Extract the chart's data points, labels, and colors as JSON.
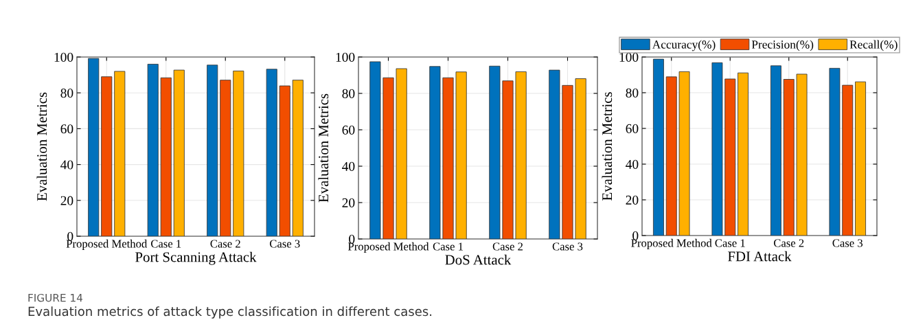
{
  "chart_data": [
    {
      "type": "bar",
      "xlabel": "Port Scanning Attack",
      "ylabel": "Evaluation Metrics",
      "categories": [
        "Proposed Method",
        "Case 1",
        "Case 2",
        "Case 3"
      ],
      "ylim": [
        0,
        100
      ],
      "yticks": [
        0,
        20,
        40,
        60,
        80,
        100
      ],
      "grid": true,
      "legend": false,
      "series": [
        {
          "color": "#0072bd",
          "values": [
            99.2,
            96.0,
            95.5,
            93.2
          ]
        },
        {
          "color": "#f24e00",
          "values": [
            89.0,
            88.4,
            87.1,
            83.9
          ]
        },
        {
          "color": "#ffb000",
          "values": [
            92.0,
            92.7,
            92.2,
            87.1
          ]
        }
      ],
      "annotations": [
        "FIGURE 14",
        "Evaluation metrics of attack type classification in different cases."
      ]
    },
    {
      "type": "bar",
      "xlabel": "DoS Attack",
      "ylabel": "Evaluation Metrics",
      "categories": [
        "Proposed Method",
        "Case 1",
        "Case 2",
        "Case 3"
      ],
      "ylim": [
        0,
        100
      ],
      "yticks": [
        0,
        20,
        40,
        60,
        80,
        100
      ],
      "grid": true,
      "legend": false,
      "series": [
        {
          "color": "#0072bd",
          "values": [
            97.4,
            94.8,
            95.0,
            92.8
          ]
        },
        {
          "color": "#f24e00",
          "values": [
            88.6,
            88.6,
            86.9,
            84.4
          ]
        },
        {
          "color": "#ffb000",
          "values": [
            93.6,
            91.8,
            91.9,
            88.1
          ]
        }
      ]
    },
    {
      "type": "bar",
      "xlabel": "FDI Attack",
      "ylabel": "Evaluation Metrics",
      "categories": [
        "Proposed Method",
        "Case 1",
        "Case 2",
        "Case 3"
      ],
      "ylim": [
        0,
        100
      ],
      "yticks": [
        0,
        20,
        40,
        60,
        80,
        100
      ],
      "grid": true,
      "legend": "top",
      "series": [
        {
          "name": "Accuracy(%)",
          "color": "#0072bd",
          "values": [
            98.8,
            96.8,
            95.1,
            93.7
          ]
        },
        {
          "name": "Precision(%)",
          "color": "#f24e00",
          "values": [
            88.9,
            87.7,
            87.5,
            84.2
          ]
        },
        {
          "name": "Recall(%)",
          "color": "#ffb000",
          "values": [
            91.8,
            91.1,
            90.4,
            86.1
          ]
        }
      ]
    }
  ]
}
